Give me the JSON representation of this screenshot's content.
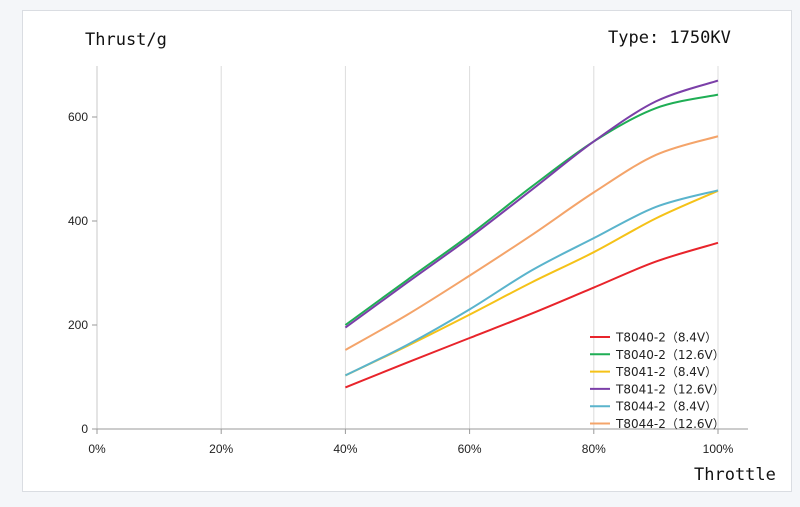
{
  "chart_data": {
    "type": "line",
    "title": "",
    "ylabel": "Thrust/g",
    "xlabel": "Throttle",
    "annotation": "Type: 1750KV",
    "x": [
      40,
      50,
      60,
      70,
      80,
      90,
      100
    ],
    "x_tick_labels": [
      "0%",
      "20%",
      "40%",
      "60%",
      "80%",
      "100%"
    ],
    "x_ticks": [
      0,
      20,
      40,
      60,
      80,
      100
    ],
    "y_ticks": [
      0,
      200,
      400,
      600
    ],
    "xlim": [
      0,
      100
    ],
    "ylim": [
      0,
      690
    ],
    "grid": "vertical",
    "legend_position": "bottom-right",
    "series": [
      {
        "name": "T8040-2（8.4V）",
        "color": "#e8242b",
        "values": [
          80,
          128,
          175,
          222,
          272,
          322,
          358
        ]
      },
      {
        "name": "T8040-2（12.6V）",
        "color": "#1fae55",
        "values": [
          200,
          287,
          373,
          466,
          553,
          617,
          643
        ]
      },
      {
        "name": "T8041-2（8.4V）",
        "color": "#f5c218",
        "values": [
          103,
          160,
          220,
          282,
          340,
          405,
          458
        ]
      },
      {
        "name": "T8041-2（12.6V）",
        "color": "#7b3fa8",
        "values": [
          195,
          282,
          368,
          460,
          553,
          630,
          670
        ]
      },
      {
        "name": "T8044-2（8.4V）",
        "color": "#5ab4cc",
        "values": [
          103,
          162,
          230,
          305,
          367,
          427,
          459
        ]
      },
      {
        "name": "T8044-2（12.6V）",
        "color": "#f4a46a",
        "values": [
          152,
          220,
          295,
          373,
          455,
          527,
          563
        ]
      }
    ]
  }
}
